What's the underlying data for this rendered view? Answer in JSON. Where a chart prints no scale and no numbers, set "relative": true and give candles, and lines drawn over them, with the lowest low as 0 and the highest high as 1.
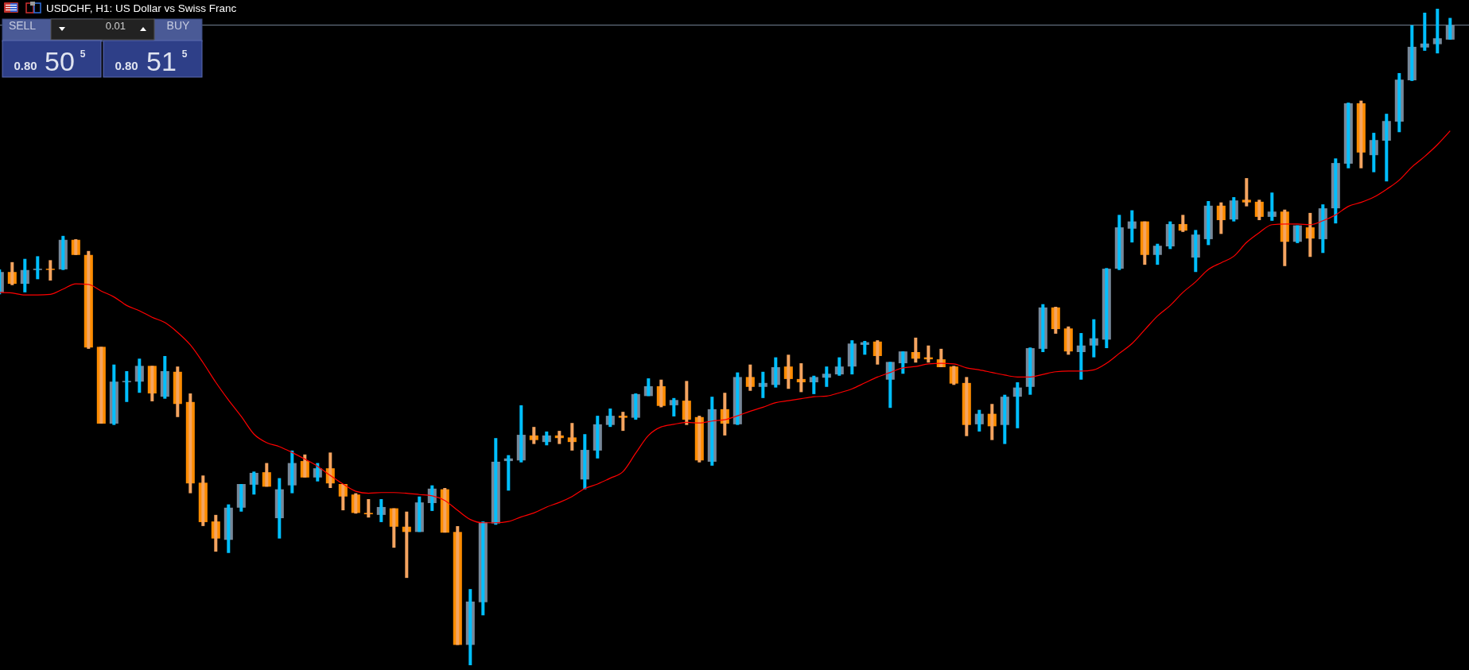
{
  "chart_data": {
    "type": "candlestick",
    "title": "USDCHF, H1:  US Dollar vs Swiss Franc",
    "relative": true,
    "tick_labels": false,
    "annotations": [
      "SELL",
      "0.01",
      "BUY",
      "0.80",
      "50",
      "5",
      "0.80",
      "51",
      "5"
    ],
    "categories": [
      null,
      null,
      null,
      null,
      null,
      null,
      null,
      null,
      null,
      null,
      null,
      null,
      null,
      null,
      null,
      null,
      null,
      null,
      null,
      null,
      null,
      null,
      null,
      null,
      null,
      null,
      null,
      null,
      null,
      null,
      null,
      null,
      null,
      null,
      null,
      null,
      null,
      null,
      null,
      null,
      null,
      null,
      null,
      null,
      null,
      null,
      null,
      null,
      null,
      null,
      null,
      null,
      null,
      null,
      null,
      null,
      null,
      null,
      null,
      null,
      null,
      null,
      null,
      null,
      null,
      null,
      null,
      null,
      null,
      null,
      null,
      null,
      null,
      null,
      null,
      null,
      null,
      null,
      null,
      null,
      null,
      null,
      null,
      null,
      null,
      null,
      null,
      null,
      null,
      null,
      null,
      null,
      null,
      null,
      null,
      null,
      null,
      null,
      null,
      null,
      null,
      null,
      null,
      null,
      null,
      null,
      null,
      null,
      null,
      null,
      null,
      null,
      null,
      null,
      null
    ],
    "ohlc": [
      [
        0.568,
        0.603,
        0.565,
        0.599
      ],
      [
        0.599,
        0.614,
        0.579,
        0.581
      ],
      [
        0.581,
        0.619,
        0.568,
        0.602
      ],
      [
        0.602,
        0.623,
        0.588,
        0.604
      ],
      [
        0.604,
        0.617,
        0.586,
        0.603
      ],
      [
        0.603,
        0.654,
        0.602,
        0.648
      ],
      [
        0.648,
        0.649,
        0.625,
        0.625
      ],
      [
        0.625,
        0.631,
        0.482,
        0.484
      ],
      [
        0.485,
        0.485,
        0.368,
        0.368
      ],
      [
        0.368,
        0.458,
        0.366,
        0.432
      ],
      [
        0.432,
        0.448,
        0.401,
        0.433
      ],
      [
        0.432,
        0.467,
        0.415,
        0.456
      ],
      [
        0.456,
        0.456,
        0.402,
        0.414
      ],
      [
        0.409,
        0.471,
        0.406,
        0.448
      ],
      [
        0.447,
        0.455,
        0.378,
        0.398
      ],
      [
        0.401,
        0.414,
        0.262,
        0.277
      ],
      [
        0.278,
        0.289,
        0.212,
        0.218
      ],
      [
        0.219,
        0.229,
        0.173,
        0.193
      ],
      [
        0.191,
        0.245,
        0.171,
        0.24
      ],
      [
        0.24,
        0.276,
        0.234,
        0.276
      ],
      [
        0.275,
        0.295,
        0.26,
        0.293
      ],
      [
        0.294,
        0.308,
        0.272,
        0.272
      ],
      [
        0.224,
        0.285,
        0.193,
        0.268
      ],
      [
        0.274,
        0.327,
        0.262,
        0.308
      ],
      [
        0.311,
        0.321,
        0.286,
        0.286
      ],
      [
        0.286,
        0.308,
        0.28,
        0.3
      ],
      [
        0.3,
        0.324,
        0.27,
        0.277
      ],
      [
        0.276,
        0.276,
        0.236,
        0.257
      ],
      [
        0.26,
        0.262,
        0.231,
        0.232
      ],
      [
        0.232,
        0.253,
        0.225,
        0.23
      ],
      [
        0.229,
        0.253,
        0.218,
        0.241
      ],
      [
        0.239,
        0.239,
        0.179,
        0.211
      ],
      [
        0.211,
        0.234,
        0.133,
        0.203
      ],
      [
        0.203,
        0.257,
        0.203,
        0.248
      ],
      [
        0.247,
        0.274,
        0.235,
        0.269
      ],
      [
        0.268,
        0.27,
        0.202,
        0.202
      ],
      [
        0.203,
        0.212,
        0.031,
        0.031
      ],
      [
        0.031,
        0.116,
        0,
        0.097
      ],
      [
        0.096,
        0.219,
        0.076,
        0.218
      ],
      [
        0.216,
        0.346,
        0.214,
        0.31
      ],
      [
        0.311,
        0.32,
        0.266,
        0.315
      ],
      [
        0.312,
        0.396,
        0.309,
        0.351
      ],
      [
        0.35,
        0.363,
        0.337,
        0.343
      ],
      [
        0.34,
        0.356,
        0.335,
        0.35
      ],
      [
        0.35,
        0.357,
        0.337,
        0.346
      ],
      [
        0.347,
        0.369,
        0.327,
        0.34
      ],
      [
        0.283,
        0.352,
        0.268,
        0.328
      ],
      [
        0.327,
        0.38,
        0.315,
        0.367
      ],
      [
        0.366,
        0.391,
        0.363,
        0.38
      ],
      [
        0.38,
        0.386,
        0.357,
        0.377
      ],
      [
        0.377,
        0.414,
        0.374,
        0.413
      ],
      [
        0.41,
        0.437,
        0.41,
        0.425
      ],
      [
        0.425,
        0.435,
        0.393,
        0.395
      ],
      [
        0.396,
        0.407,
        0.379,
        0.404
      ],
      [
        0.403,
        0.433,
        0.366,
        0.374
      ],
      [
        0.378,
        0.38,
        0.309,
        0.312
      ],
      [
        0.31,
        0.409,
        0.304,
        0.39
      ],
      [
        0.39,
        0.415,
        0.35,
        0.368
      ],
      [
        0.367,
        0.446,
        0.366,
        0.439
      ],
      [
        0.439,
        0.458,
        0.418,
        0.424
      ],
      [
        0.424,
        0.447,
        0.407,
        0.43
      ],
      [
        0.427,
        0.469,
        0.423,
        0.454
      ],
      [
        0.455,
        0.473,
        0.421,
        0.436
      ],
      [
        0.436,
        0.46,
        0.416,
        0.431
      ],
      [
        0.431,
        0.441,
        0.413,
        0.439
      ],
      [
        0.438,
        0.455,
        0.424,
        0.444
      ],
      [
        0.443,
        0.469,
        0.441,
        0.455
      ],
      [
        0.455,
        0.495,
        0.443,
        0.49
      ],
      [
        0.488,
        0.494,
        0.473,
        0.492
      ],
      [
        0.493,
        0.495,
        0.458,
        0.471
      ],
      [
        0.435,
        0.462,
        0.392,
        0.462
      ],
      [
        0.46,
        0.478,
        0.444,
        0.478
      ],
      [
        0.477,
        0.499,
        0.461,
        0.467
      ],
      [
        0.469,
        0.487,
        0.461,
        0.466
      ],
      [
        0.466,
        0.482,
        0.454,
        0.454
      ],
      [
        0.455,
        0.456,
        0.427,
        0.429
      ],
      [
        0.43,
        0.439,
        0.349,
        0.366
      ],
      [
        0.367,
        0.389,
        0.356,
        0.383
      ],
      [
        0.383,
        0.398,
        0.343,
        0.364
      ],
      [
        0.366,
        0.412,
        0.337,
        0.409
      ],
      [
        0.409,
        0.431,
        0.361,
        0.423
      ],
      [
        0.424,
        0.484,
        0.412,
        0.483
      ],
      [
        0.482,
        0.55,
        0.477,
        0.545
      ],
      [
        0.545,
        0.546,
        0.505,
        0.512
      ],
      [
        0.513,
        0.516,
        0.473,
        0.478
      ],
      [
        0.477,
        0.506,
        0.435,
        0.487
      ],
      [
        0.487,
        0.527,
        0.469,
        0.498
      ],
      [
        0.496,
        0.605,
        0.483,
        0.604
      ],
      [
        0.604,
        0.686,
        0.602,
        0.667
      ],
      [
        0.665,
        0.693,
        0.644,
        0.676
      ],
      [
        0.676,
        0.676,
        0.61,
        0.625
      ],
      [
        0.625,
        0.642,
        0.61,
        0.639
      ],
      [
        0.638,
        0.676,
        0.634,
        0.672
      ],
      [
        0.672,
        0.686,
        0.66,
        0.662
      ],
      [
        0.621,
        0.663,
        0.599,
        0.656
      ],
      [
        0.649,
        0.707,
        0.64,
        0.7
      ],
      [
        0.7,
        0.705,
        0.657,
        0.678
      ],
      [
        0.679,
        0.713,
        0.676,
        0.708
      ],
      [
        0.709,
        0.742,
        0.699,
        0.705
      ],
      [
        0.706,
        0.709,
        0.678,
        0.683
      ],
      [
        0.683,
        0.72,
        0.677,
        0.691
      ],
      [
        0.691,
        0.694,
        0.608,
        0.645
      ],
      [
        0.645,
        0.67,
        0.643,
        0.67
      ],
      [
        0.667,
        0.689,
        0.622,
        0.65
      ],
      [
        0.649,
        0.702,
        0.628,
        0.696
      ],
      [
        0.696,
        0.772,
        0.673,
        0.765
      ],
      [
        0.764,
        0.857,
        0.757,
        0.856
      ],
      [
        0.856,
        0.86,
        0.757,
        0.781
      ],
      [
        0.777,
        0.811,
        0.751,
        0.8
      ],
      [
        0.799,
        0.84,
        0.737,
        0.829
      ],
      [
        0.828,
        0.902,
        0.812,
        0.892
      ],
      [
        0.891,
        0.975,
        0.89,
        0.942
      ],
      [
        0.941,
        0.994,
        0.936,
        0.947
      ],
      [
        0.946,
        1,
        0.932,
        0.955
      ],
      [
        0.953,
        0.986,
        0.953,
        0.975
      ]
    ],
    "series": [
      {
        "type": "line",
        "color": "#ff0000",
        "values": [
          0.568,
          0.567,
          0.564,
          0.564,
          0.565,
          0.573,
          0.581,
          0.58,
          0.57,
          0.561,
          0.548,
          0.54,
          0.53,
          0.522,
          0.507,
          0.488,
          0.461,
          0.431,
          0.404,
          0.379,
          0.352,
          0.339,
          0.333,
          0.324,
          0.314,
          0.303,
          0.289,
          0.276,
          0.265,
          0.262,
          0.263,
          0.263,
          0.262,
          0.26,
          0.258,
          0.251,
          0.236,
          0.222,
          0.217,
          0.217,
          0.219,
          0.226,
          0.232,
          0.241,
          0.248,
          0.257,
          0.269,
          0.276,
          0.285,
          0.295,
          0.323,
          0.35,
          0.363,
          0.367,
          0.37,
          0.369,
          0.372,
          0.374,
          0.38,
          0.387,
          0.393,
          0.4,
          0.403,
          0.406,
          0.409,
          0.41,
          0.415,
          0.421,
          0.43,
          0.439,
          0.446,
          0.453,
          0.455,
          0.459,
          0.46,
          0.459,
          0.453,
          0.45,
          0.446,
          0.442,
          0.439,
          0.439,
          0.443,
          0.447,
          0.448,
          0.448,
          0.45,
          0.46,
          0.475,
          0.49,
          0.511,
          0.532,
          0.548,
          0.568,
          0.584,
          0.603,
          0.613,
          0.623,
          0.644,
          0.659,
          0.671,
          0.672,
          0.672,
          0.671,
          0.677,
          0.686,
          0.699,
          0.705,
          0.713,
          0.725,
          0.739,
          0.759,
          0.775,
          0.793,
          0.814
        ]
      }
    ],
    "ref_lines": [
      {
        "axis": "y",
        "value": 0.975,
        "color": "#778899"
      }
    ]
  }
}
